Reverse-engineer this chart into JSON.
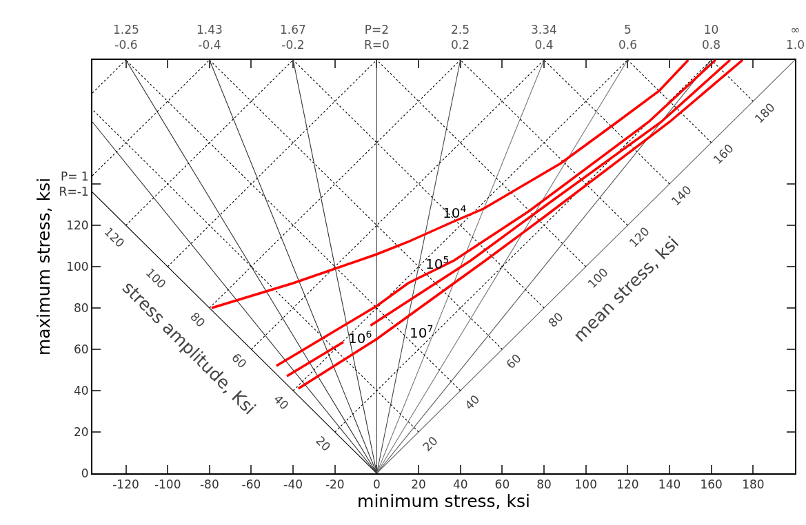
{
  "chart_data": {
    "type": "line",
    "xlabel": "minimum stress, ksi",
    "ylabel": "maximum stress, ksi",
    "xlim": [
      -136,
      200
    ],
    "xticks": [
      -120,
      -100,
      -80,
      -60,
      -40,
      -20,
      0,
      20,
      40,
      60,
      80,
      100,
      120,
      140,
      160,
      180
    ],
    "ylim": [
      0,
      200
    ],
    "yticks": [
      0,
      20,
      40,
      60,
      80,
      100,
      120,
      {
        "value": 140,
        "label": "P= 1\nR=-1"
      }
    ],
    "marker": "none",
    "ref_lines": [
      {
        "axis": "x",
        "value": 0,
        "color": "#444444",
        "line_style": "solid"
      }
    ],
    "series": [
      {
        "color": "#000000",
        "line_style": "solid",
        "x": [
          0,
          -136
        ],
        "values": [
          0,
          136
        ]
      },
      {
        "color": "#333333",
        "line_style": "solid",
        "x": [
          0,
          -136
        ],
        "values": [
          0,
          170
        ]
      },
      {
        "color": "#333333",
        "line_style": "solid",
        "x": [
          0,
          -120
        ],
        "values": [
          0,
          200
        ]
      },
      {
        "color": "#333333",
        "line_style": "solid",
        "x": [
          0,
          -80
        ],
        "values": [
          0,
          200
        ]
      },
      {
        "color": "#333333",
        "line_style": "solid",
        "x": [
          0,
          -40
        ],
        "values": [
          0,
          200
        ]
      },
      {
        "color": "#444444",
        "line_style": "solid",
        "x": [
          0,
          40
        ],
        "values": [
          0,
          200
        ]
      },
      {
        "color": "#777777",
        "line_style": "solid",
        "x": [
          0,
          80
        ],
        "values": [
          0,
          200
        ]
      },
      {
        "color": "#777777",
        "line_style": "solid",
        "x": [
          0,
          120
        ],
        "values": [
          0,
          200
        ]
      },
      {
        "color": "#555555",
        "line_style": "solid",
        "x": [
          0,
          160
        ],
        "values": [
          0,
          200
        ]
      },
      {
        "color": "#666666",
        "line_style": "solid",
        "x": [
          0,
          200
        ],
        "values": [
          0,
          200
        ]
      },
      {
        "color": "#000000",
        "line_style": "dotted",
        "x": [
          -20,
          160
        ],
        "values": [
          20,
          200
        ]
      },
      {
        "color": "#000000",
        "line_style": "dotted",
        "x": [
          -40,
          120
        ],
        "values": [
          40,
          200
        ]
      },
      {
        "color": "#000000",
        "line_style": "dotted",
        "x": [
          -60,
          80
        ],
        "values": [
          60,
          200
        ]
      },
      {
        "color": "#000000",
        "line_style": "dotted",
        "x": [
          -80,
          40
        ],
        "values": [
          80,
          200
        ]
      },
      {
        "color": "#000000",
        "line_style": "dotted",
        "x": [
          -100,
          0
        ],
        "values": [
          100,
          200
        ]
      },
      {
        "color": "#000000",
        "line_style": "dotted",
        "x": [
          -120,
          -40
        ],
        "values": [
          120,
          200
        ]
      },
      {
        "color": "#000000",
        "line_style": "dotted",
        "x": [
          -136,
          -80
        ],
        "values": [
          144,
          200
        ]
      },
      {
        "color": "#000000",
        "line_style": "dotted",
        "x": [
          -136,
          -120
        ],
        "values": [
          184,
          200
        ]
      },
      {
        "color": "#000000",
        "line_style": "dotted",
        "x": [
          20,
          -136
        ],
        "values": [
          20,
          176
        ]
      },
      {
        "color": "#000000",
        "line_style": "dotted",
        "x": [
          40,
          -120
        ],
        "values": [
          40,
          200
        ]
      },
      {
        "color": "#000000",
        "line_style": "dotted",
        "x": [
          60,
          -80
        ],
        "values": [
          60,
          200
        ]
      },
      {
        "color": "#000000",
        "line_style": "dotted",
        "x": [
          80,
          -40
        ],
        "values": [
          80,
          200
        ]
      },
      {
        "color": "#000000",
        "line_style": "dotted",
        "x": [
          100,
          0
        ],
        "values": [
          100,
          200
        ]
      },
      {
        "color": "#000000",
        "line_style": "dotted",
        "x": [
          120,
          40
        ],
        "values": [
          120,
          200
        ]
      },
      {
        "color": "#000000",
        "line_style": "dotted",
        "x": [
          140,
          80
        ],
        "values": [
          140,
          200
        ]
      },
      {
        "color": "#000000",
        "line_style": "dotted",
        "x": [
          160,
          120
        ],
        "values": [
          160,
          200
        ]
      },
      {
        "color": "#000000",
        "line_style": "dotted",
        "x": [
          180,
          160
        ],
        "values": [
          180,
          200
        ]
      },
      {
        "color": "#ff0000",
        "line_style": "solid",
        "x": [
          -79,
          -40,
          0,
          15,
          36,
          51,
          88,
          115,
          135,
          149
        ],
        "values": [
          80,
          92,
          106,
          112,
          121.5,
          128,
          150,
          170,
          185,
          200
        ]
      },
      {
        "color": "#ff0000",
        "line_style": "solid",
        "x": [
          -48,
          0,
          15,
          37,
          73,
          130,
          162
        ],
        "values": [
          52,
          81,
          92,
          103,
          127,
          170,
          200
        ]
      },
      {
        "color": "#ff0000",
        "line_style": "solid",
        "x": [
          -43,
          -16,
          -10,
          -3,
          45,
          80,
          136,
          169
        ],
        "values": [
          47,
          63.5,
          null,
          71.5,
          103,
          129,
          170,
          200
        ]
      },
      {
        "color": "#ff0000",
        "line_style": "solid",
        "x": [
          -37.5,
          0,
          52,
          80,
          140,
          175
        ],
        "values": [
          41,
          65,
          103,
          124,
          170,
          200
        ]
      }
    ],
    "annotations": [
      {
        "text": "20",
        "x": -20,
        "y": 20
      },
      {
        "text": "40",
        "x": -40,
        "y": 40
      },
      {
        "text": "60",
        "x": -60,
        "y": 60
      },
      {
        "text": "80",
        "x": -80,
        "y": 80
      },
      {
        "text": "100",
        "x": -100,
        "y": 100
      },
      {
        "text": "120",
        "x": -120,
        "y": 120
      },
      {
        "text": "20",
        "x": 20,
        "y": 20
      },
      {
        "text": "40",
        "x": 40,
        "y": 40
      },
      {
        "text": "60",
        "x": 60,
        "y": 60
      },
      {
        "text": "80",
        "x": 80,
        "y": 80
      },
      {
        "text": "100",
        "x": 100,
        "y": 100
      },
      {
        "text": "120",
        "x": 120,
        "y": 120
      },
      {
        "text": "140",
        "x": 140,
        "y": 140
      },
      {
        "text": "160",
        "x": 160,
        "y": 160
      },
      {
        "text": "180",
        "x": 180,
        "y": 180
      },
      {
        "text": "1.25\n-0.6",
        "x": -120,
        "y": 200
      },
      {
        "text": "1.43\n-0.4",
        "x": -80,
        "y": 200
      },
      {
        "text": "1.67\n-0.2",
        "x": -40,
        "y": 200
      },
      {
        "text": "P=2\nR=0",
        "x": 0,
        "y": 200
      },
      {
        "text": "2.5\n0.2",
        "x": 40,
        "y": 200
      },
      {
        "text": "3.34\n0.4",
        "x": 80,
        "y": 200
      },
      {
        "text": "5\n0.6",
        "x": 120,
        "y": 200
      },
      {
        "text": "10\n0.8",
        "x": 160,
        "y": 200
      },
      {
        "text": "∞\n1.0",
        "x": 200,
        "y": 200
      },
      "stress amplitude, Ksi",
      "mean stress, ksi",
      "10$^{4}$",
      "10$^{5}$",
      "10$^{6}$",
      "10$^{7}$"
    ]
  }
}
